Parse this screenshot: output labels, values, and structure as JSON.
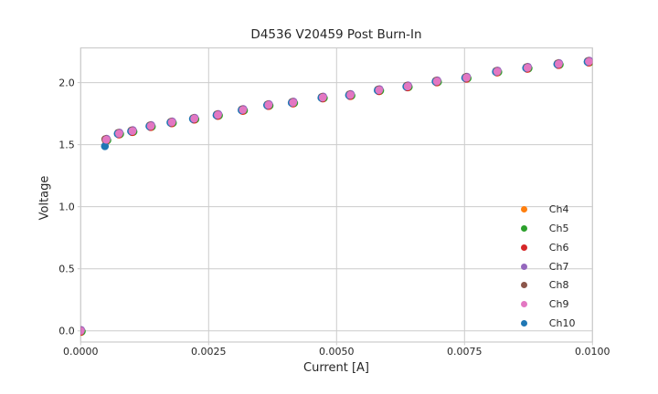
{
  "chart_data": {
    "type": "scatter",
    "title": "D4536 V20459 Post Burn-In",
    "xlabel": "Current [A]",
    "ylabel": "Voltage",
    "xlim": [
      0.0,
      0.01
    ],
    "ylim": [
      -0.09,
      2.28
    ],
    "grid": true,
    "legend_position": "lower right",
    "x_ticks": [
      0.0,
      0.0025,
      0.005,
      0.0075,
      0.01
    ],
    "x_tick_labels": [
      "0.0000",
      "0.0025",
      "0.0050",
      "0.0075",
      "0.0100"
    ],
    "y_ticks": [
      0.0,
      0.5,
      1.0,
      1.5,
      2.0
    ],
    "y_tick_labels": [
      "0.0",
      "0.5",
      "1.0",
      "1.5",
      "2.0"
    ],
    "x": [
      0.0,
      0.0005,
      0.00075,
      0.00101,
      0.00137,
      0.00178,
      0.00222,
      0.00268,
      0.00317,
      0.00367,
      0.00415,
      0.00473,
      0.00527,
      0.00583,
      0.00639,
      0.00696,
      0.00754,
      0.00814,
      0.00873,
      0.00934,
      0.00993
    ],
    "series": [
      {
        "name": "Ch4",
        "color": "#ff7f0e",
        "values": [
          0.0,
          1.54,
          1.59,
          1.61,
          1.65,
          1.68,
          1.71,
          1.74,
          1.78,
          1.82,
          1.84,
          1.88,
          1.9,
          1.94,
          1.97,
          2.01,
          2.04,
          2.09,
          2.12,
          2.15,
          2.17
        ]
      },
      {
        "name": "Ch5",
        "color": "#2ca02c",
        "values": [
          0.0,
          1.54,
          1.59,
          1.61,
          1.65,
          1.68,
          1.71,
          1.74,
          1.78,
          1.82,
          1.84,
          1.88,
          1.9,
          1.94,
          1.97,
          2.01,
          2.04,
          2.09,
          2.12,
          2.15,
          2.17
        ]
      },
      {
        "name": "Ch6",
        "color": "#d62728",
        "values": [
          0.0,
          1.54,
          1.59,
          1.61,
          1.65,
          1.68,
          1.71,
          1.74,
          1.78,
          1.82,
          1.84,
          1.88,
          1.9,
          1.94,
          1.97,
          2.01,
          2.04,
          2.09,
          2.12,
          2.15,
          2.17
        ]
      },
      {
        "name": "Ch7",
        "color": "#9467bd",
        "values": [
          0.0,
          1.54,
          1.59,
          1.61,
          1.65,
          1.68,
          1.71,
          1.74,
          1.78,
          1.82,
          1.84,
          1.88,
          1.9,
          1.94,
          1.97,
          2.01,
          2.04,
          2.09,
          2.12,
          2.15,
          2.17
        ]
      },
      {
        "name": "Ch8",
        "color": "#8c564b",
        "values": [
          0.0,
          1.54,
          1.59,
          1.61,
          1.65,
          1.68,
          1.71,
          1.74,
          1.78,
          1.82,
          1.84,
          1.88,
          1.9,
          1.94,
          1.97,
          2.01,
          2.04,
          2.09,
          2.12,
          2.15,
          2.17
        ]
      },
      {
        "name": "Ch9",
        "color": "#e377c2",
        "values": [
          0.0,
          1.54,
          1.59,
          1.61,
          1.65,
          1.68,
          1.71,
          1.74,
          1.78,
          1.82,
          1.84,
          1.88,
          1.9,
          1.94,
          1.97,
          2.01,
          2.04,
          2.09,
          2.12,
          2.15,
          2.17
        ]
      },
      {
        "name": "Ch10",
        "color": "#1f77b4",
        "values": [
          0.0,
          1.49,
          1.59,
          1.61,
          1.65,
          1.68,
          1.71,
          1.74,
          1.78,
          1.82,
          1.84,
          1.88,
          1.9,
          1.94,
          1.97,
          2.01,
          2.04,
          2.09,
          2.12,
          2.15,
          2.17
        ]
      }
    ],
    "grid_color": "#cccccc",
    "text_color": "#262626"
  }
}
